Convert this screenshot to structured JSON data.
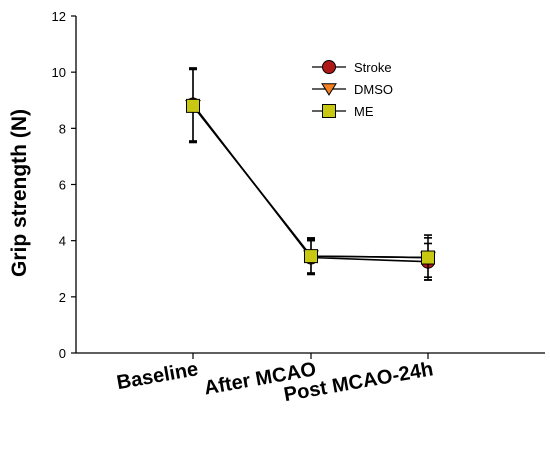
{
  "chart_data": {
    "type": "line",
    "categories": [
      "Baseline",
      "After MCAO",
      "Post MCAO-24h"
    ],
    "ylabel": "Grip strength (N)",
    "xlabel": "",
    "ylim": [
      0,
      12
    ],
    "yticks": [
      0,
      2,
      4,
      6,
      8,
      10,
      12
    ],
    "legend_position": "top-right",
    "grid": false,
    "series": [
      {
        "name": "Stroke",
        "marker": "circle",
        "color": "#b01818",
        "values": [
          8.85,
          3.4,
          3.25
        ],
        "error": [
          1.3,
          0.6,
          0.65
        ]
      },
      {
        "name": "DMSO",
        "marker": "triangle-down",
        "color": "#f08020",
        "values": [
          8.8,
          3.45,
          3.4
        ],
        "error": [
          1.3,
          0.6,
          0.7
        ]
      },
      {
        "name": "ME",
        "marker": "square",
        "color": "#c8c812",
        "values": [
          8.8,
          3.45,
          3.4
        ],
        "error": [
          1.3,
          0.65,
          0.8
        ]
      }
    ]
  }
}
